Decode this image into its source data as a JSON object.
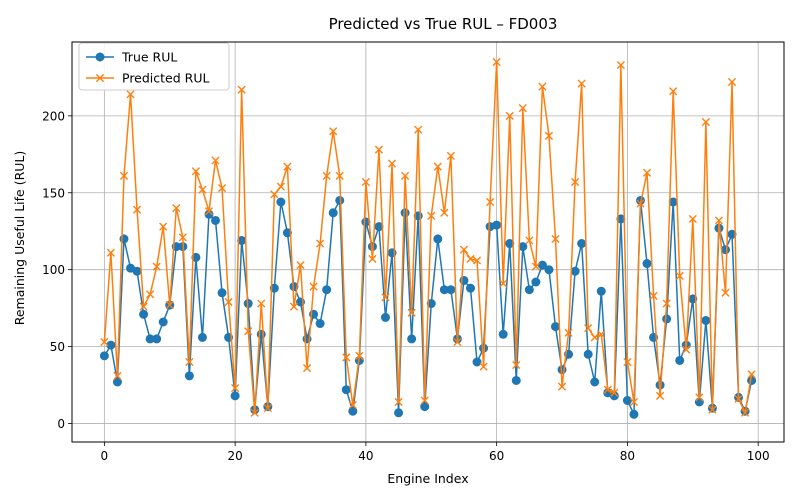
{
  "chart_data": {
    "type": "line",
    "title": "Predicted vs True RUL – FD003",
    "xlabel": "Engine Index",
    "ylabel": "Remaining Useful Life (RUL)",
    "xlim": [
      -4.95,
      103.95
    ],
    "ylim": [
      -12,
      248
    ],
    "xticks": [
      0,
      20,
      40,
      60,
      80,
      100
    ],
    "yticks": [
      0,
      50,
      100,
      150,
      200
    ],
    "grid": true,
    "legend_position": "top-left",
    "x": [
      0,
      1,
      2,
      3,
      4,
      5,
      6,
      7,
      8,
      9,
      10,
      11,
      12,
      13,
      14,
      15,
      16,
      17,
      18,
      19,
      20,
      21,
      22,
      23,
      24,
      25,
      26,
      27,
      28,
      29,
      30,
      31,
      32,
      33,
      34,
      35,
      36,
      37,
      38,
      39,
      40,
      41,
      42,
      43,
      44,
      45,
      46,
      47,
      48,
      49,
      50,
      51,
      52,
      53,
      54,
      55,
      56,
      57,
      58,
      59,
      60,
      61,
      62,
      63,
      64,
      65,
      66,
      67,
      68,
      69,
      70,
      71,
      72,
      73,
      74,
      75,
      76,
      77,
      78,
      79,
      80,
      81,
      82,
      83,
      84,
      85,
      86,
      87,
      88,
      89,
      90,
      91,
      92,
      93,
      94,
      95,
      96,
      97,
      98,
      99
    ],
    "series": [
      {
        "name": "True RUL",
        "color": "#1f77b4",
        "marker": "circle",
        "values": [
          44,
          51,
          27,
          120,
          101,
          99,
          71,
          55,
          55,
          66,
          77,
          115,
          115,
          31,
          108,
          56,
          136,
          132,
          85,
          56,
          18,
          119,
          78,
          9,
          58,
          11,
          88,
          144,
          124,
          89,
          79,
          55,
          71,
          65,
          87,
          137,
          145,
          22,
          8,
          41,
          131,
          115,
          128,
          69,
          111,
          7,
          137,
          55,
          135,
          11,
          78,
          120,
          87,
          87,
          55,
          93,
          88,
          40,
          49,
          128,
          129,
          58,
          117,
          28,
          115,
          87,
          92,
          103,
          100,
          63,
          35,
          45,
          99,
          117,
          45,
          27,
          86,
          20,
          18,
          133,
          15,
          6,
          145,
          104,
          56,
          25,
          68,
          144,
          41,
          51,
          81,
          14,
          67,
          10,
          127,
          113,
          123,
          17,
          8,
          28
        ]
      },
      {
        "name": "Predicted RUL",
        "color": "#ff7f0e",
        "marker": "x",
        "values": [
          53,
          111,
          31,
          161,
          214,
          139,
          76,
          84,
          102,
          128,
          77,
          140,
          121,
          40,
          164,
          152,
          138,
          171,
          153,
          79,
          23,
          217,
          60,
          7,
          78,
          10,
          149,
          154,
          167,
          76,
          103,
          36,
          89,
          117,
          161,
          190,
          161,
          43,
          12,
          44,
          157,
          107,
          178,
          82,
          169,
          14,
          161,
          72,
          191,
          15,
          135,
          167,
          137,
          174,
          53,
          113,
          107,
          106,
          37,
          144,
          235,
          91,
          200,
          38,
          205,
          119,
          102,
          219,
          187,
          120,
          24,
          59,
          157,
          221,
          62,
          56,
          58,
          22,
          20,
          233,
          40,
          14,
          143,
          163,
          83,
          18,
          78,
          216,
          96,
          48,
          133,
          17,
          196,
          9,
          132,
          85,
          222,
          16,
          7,
          32
        ]
      }
    ]
  }
}
